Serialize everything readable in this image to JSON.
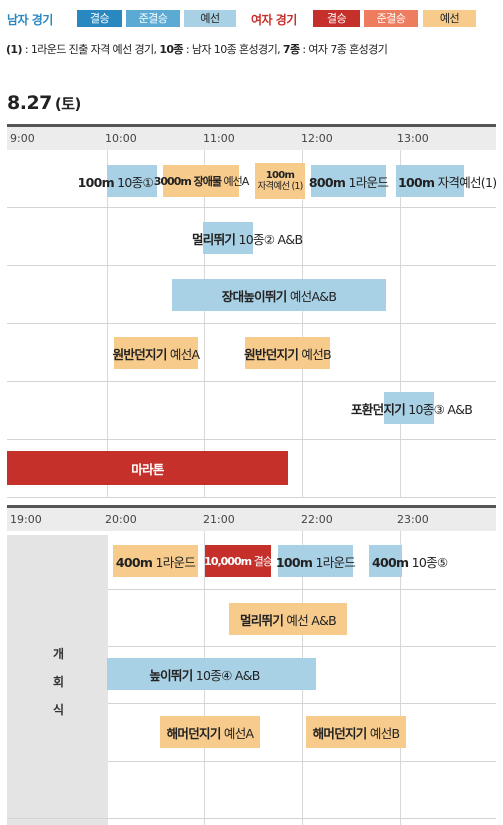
{
  "legend": {
    "men_label": "남자 경기",
    "women_label": "여자 경기",
    "final": "결승",
    "semifinal": "준결승",
    "prelim": "예선",
    "colors": {
      "men_final": "#2a88c1",
      "men_semi": "#5aaad4",
      "men_prelim": "#a9d1e5",
      "women_final": "#c5302b",
      "women_semi": "#ee7d5f",
      "women_prelim": "#f7cb8c"
    }
  },
  "note": {
    "p1": "(1)",
    "t1": " : 1라운드 진출 자격 예선 경기, ",
    "p2": "10종",
    "t2": " : 남자 10종 혼성경기, ",
    "p3": "7종",
    "t3": " : 여자 7종 혼성경기"
  },
  "date": {
    "day": "8.27",
    "dow": "(토)"
  },
  "morning": {
    "times": [
      "9:00",
      "10:00",
      "11:00",
      "12:00",
      "13:00"
    ],
    "events": [
      {
        "id": "m100-dec",
        "bold": "100m",
        "rest": " 10종①",
        "kind": "prelim-m"
      },
      {
        "id": "w3000-sc",
        "bold": "3000m 장애물",
        "rest": " 예선A",
        "kind": "prelim-w"
      },
      {
        "id": "w100-q",
        "line1": "100m",
        "line2": "자격예선 (1)",
        "kind": "prelim-w"
      },
      {
        "id": "m800-r1",
        "bold": "800m",
        "rest": " 1라운드",
        "kind": "prelim-m"
      },
      {
        "id": "m100-q",
        "bold": "100m",
        "rest": " 자격예선(1)",
        "kind": "prelim-m"
      },
      {
        "id": "m-lj-dec",
        "bold": "멀리뛰기",
        "rest": " 10종② A&B",
        "kind": "prelim-m"
      },
      {
        "id": "m-pv",
        "bold": "장대높이뛰기",
        "rest": " 예선A&B",
        "kind": "prelim-m"
      },
      {
        "id": "w-dt-a",
        "bold": "원반던지기",
        "rest": " 예선A",
        "kind": "prelim-w"
      },
      {
        "id": "w-dt-b",
        "bold": "원반던지기",
        "rest": " 예선B",
        "kind": "prelim-w"
      },
      {
        "id": "m-sp-dec",
        "bold": "포환던지기",
        "rest": " 10종③ A&B",
        "kind": "prelim-m"
      },
      {
        "id": "w-marathon",
        "bold": "마라톤",
        "rest": "",
        "kind": "final-w"
      }
    ]
  },
  "evening": {
    "times": [
      "19:00",
      "20:00",
      "21:00",
      "22:00",
      "23:00"
    ],
    "ceremony": [
      "개",
      "회",
      "식"
    ],
    "events": [
      {
        "id": "w400-r1",
        "bold": "400m",
        "rest": " 1라운드",
        "kind": "prelim-w"
      },
      {
        "id": "w10000",
        "bold": "10,000m",
        "rest": " 결승",
        "kind": "final-w"
      },
      {
        "id": "m100-r1",
        "bold": "100m",
        "rest": " 1라운드",
        "kind": "prelim-m"
      },
      {
        "id": "m400-dec",
        "bold": "400m",
        "rest": " 10종⑤",
        "kind": "prelim-m"
      },
      {
        "id": "w-lj",
        "bold": "멀리뛰기",
        "rest": " 예선 A&B",
        "kind": "prelim-w"
      },
      {
        "id": "m-hj-dec",
        "bold": "높이뛰기",
        "rest": " 10종④ A&B",
        "kind": "prelim-m"
      },
      {
        "id": "w-ht-a",
        "bold": "해머던지기",
        "rest": " 예선A",
        "kind": "prelim-w"
      },
      {
        "id": "w-ht-b",
        "bold": "해머던지기",
        "rest": " 예선B",
        "kind": "prelim-w"
      }
    ]
  }
}
